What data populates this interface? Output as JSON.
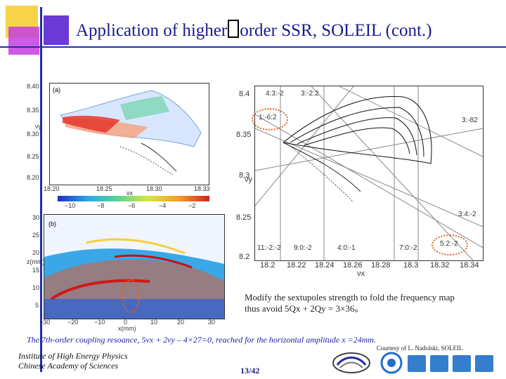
{
  "slide": {
    "title_part1": "Application of higher",
    "title_part2": "order SSR, SOLEIL (cont.)",
    "note_line1": "Modify the sextupoles strength to fold the frequency map",
    "note_line2": "thus avoid 5Qx + 2Qy = 3×36。",
    "caption": "The 7th-order coupling resoance, 5νx + 2νy – 4×27=0, reached for the horizontal amplitude x =24mm.",
    "courtesy": "Courtesy of  L. Nadolski, SOLEIL",
    "institute_line1": "Institute of High Energy Physics",
    "institute_line2": "Chinese Academy of Sciences",
    "page_number": "13/42"
  },
  "plot_a": {
    "label": "(a)",
    "ylabel": "νy",
    "xlabel": "νx",
    "yticks": [
      "8.40",
      "8.35",
      "8.30",
      "8.25",
      "8.20"
    ],
    "xticks": [
      "18.20",
      "18.25",
      "18.30",
      "18.33"
    ],
    "colorbar_ticks": [
      "−10",
      "−8",
      "−6",
      "−4",
      "−2"
    ]
  },
  "plot_b": {
    "label": "(b)",
    "ylabel": "z(mm)",
    "xlabel": "x(mm)",
    "yticks": [
      "30",
      "25",
      "20",
      "15",
      "10",
      "5"
    ],
    "xticks": [
      "−30",
      "−20",
      "−10",
      "0",
      "10",
      "20",
      "30"
    ]
  },
  "plot_right": {
    "xlabel": "νx",
    "ylabel": "νy",
    "yticks": [
      "8.4",
      "8.35",
      "8.3",
      "8.25",
      "8.2"
    ],
    "xticks": [
      "18.2",
      "18.22",
      "18.24",
      "18.26",
      "18.28",
      "18.3",
      "18.32",
      "18.34"
    ],
    "resonances": {
      "r1": "4:3:-2",
      "r2": "3:-2:2",
      "r3": "1:-6:2",
      "r4": "3:-82",
      "r5": "3:4:-2",
      "r6": "11:-2:-2",
      "r7": "9:0:-2",
      "r8": "4:0:-1",
      "r9": "7:0:-2",
      "r10": "5:2:-2"
    }
  },
  "colors": {
    "title": "#1a1a8c",
    "caption": "#2020a8",
    "highlight_circle": "#e06020",
    "accent_yellow": "#f7d34a",
    "accent_purple": "#6a39d6",
    "accent_blue_line": "#1f2ea8"
  }
}
